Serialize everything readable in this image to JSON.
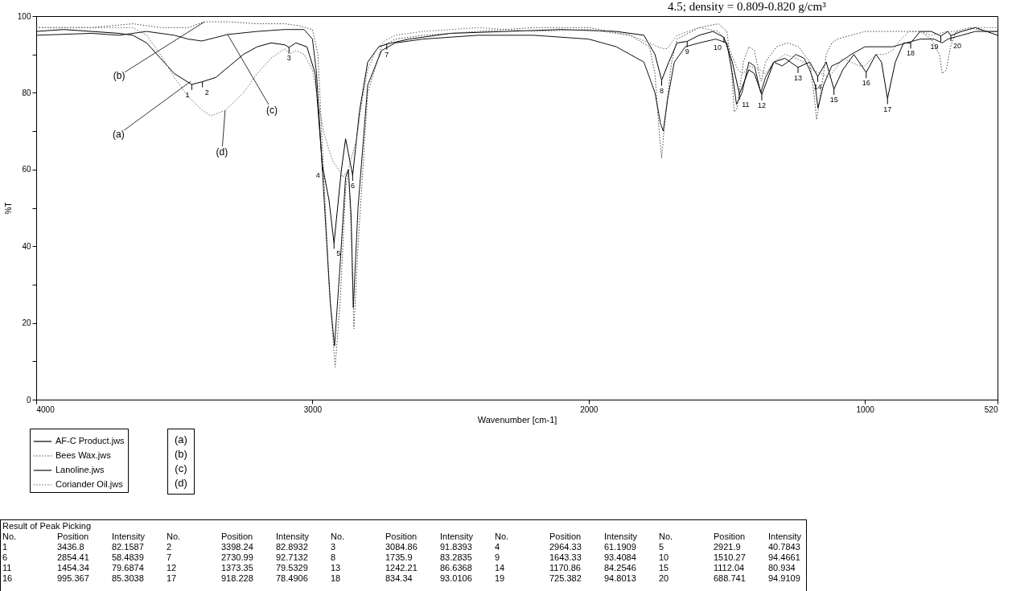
{
  "chart_data": [
    {
      "type": "line",
      "xlabel": "Wavenumber [cm-1]",
      "ylabel": "%T",
      "xlim": [
        4000,
        520
      ],
      "xticks": [
        4000,
        3000,
        2000,
        1000,
        520
      ],
      "ylim": [
        0,
        100
      ],
      "yticks": [
        0,
        {
          "value": 10,
          "label": null
        },
        20,
        {
          "value": 30,
          "label": null
        },
        40,
        {
          "value": 50,
          "label": null
        },
        60,
        {
          "value": 70,
          "label": null
        },
        80,
        {
          "value": 90,
          "label": null
        },
        100
      ],
      "grid": false,
      "legend": "bottom left",
      "series": [
        {
          "name": "AF-C Product.jws",
          "color": "#000000",
          "line_style": "solid",
          "x": [
            4000,
            3900,
            3800,
            3700,
            3650,
            3600,
            3550,
            3500,
            3436.8,
            3420,
            3398.24,
            3350,
            3300,
            3250,
            3200,
            3150,
            3100,
            3084.86,
            3060,
            3020,
            2990,
            2964.33,
            2940,
            2921.9,
            2895,
            2880,
            2854.41,
            2830,
            2800,
            2760,
            2730.99,
            2650,
            2500,
            2300,
            2100,
            1900,
            1800,
            1760,
            1735.9,
            1710,
            1680,
            1643.33,
            1600,
            1550,
            1510.27,
            1480,
            1454.34,
            1420,
            1400,
            1373.35,
            1330,
            1290,
            1242.21,
            1200,
            1170.86,
            1140,
            1112.04,
            1080,
            1040,
            995.367,
            960,
            940,
            918.228,
            890,
            860,
            834.34,
            800,
            760,
            725.382,
            700,
            688.741,
            650,
            600,
            560,
            520
          ],
          "values": [
            96,
            96.5,
            96,
            95.5,
            95,
            93,
            89,
            85,
            82.1587,
            82.5,
            82.8932,
            84,
            87,
            90,
            92,
            93,
            92.5,
            91.8393,
            93,
            92,
            85,
            61.1909,
            52,
            40.7843,
            60,
            68,
            58.4839,
            75,
            88,
            92,
            92.7132,
            94,
            95.5,
            96,
            96.5,
            96,
            95,
            90,
            83.2835,
            88,
            93,
            93.4084,
            95,
            96,
            94.4661,
            88,
            79.6874,
            86,
            85,
            79.5329,
            88,
            89,
            86.6368,
            88,
            84.2546,
            88,
            80.934,
            86,
            90,
            85.3038,
            90,
            88,
            78.4906,
            88,
            93,
            93.0106,
            96,
            96,
            94.8013,
            96,
            94.9109,
            96,
            97,
            96,
            95
          ]
        },
        {
          "name": "Bees Wax.jws",
          "color": "#444444",
          "line_style": "dotted",
          "x": [
            4000,
            3800,
            3650,
            3550,
            3450,
            3391,
            3300,
            3200,
            3100,
            3050,
            3000,
            2980,
            2960,
            2940,
            2918,
            2900,
            2880,
            2870,
            2860,
            2850,
            2835,
            2800,
            2750,
            2700,
            2600,
            2400,
            2200,
            2000,
            1850,
            1780,
            1760,
            1745,
            1736,
            1725,
            1700,
            1680,
            1600,
            1530,
            1500,
            1485,
            1473,
            1463,
            1440,
            1420,
            1400,
            1380,
            1375,
            1360,
            1320,
            1280,
            1240,
            1200,
            1185,
            1175,
            1160,
            1140,
            1120,
            1100,
            1050,
            1000,
            900,
            850,
            800,
            760,
            730,
            720,
            705,
            690,
            670,
            620,
            560,
            520
          ],
          "values": [
            97,
            97,
            98,
            97,
            97,
            98.5,
            98.5,
            98,
            98,
            97.5,
            96.5,
            90,
            60,
            30,
            8.5,
            25,
            55,
            60,
            45,
            18.5,
            40,
            80,
            92,
            94,
            95,
            96,
            97,
            97,
            95,
            92,
            85,
            70,
            63,
            72,
            88,
            94,
            97,
            98,
            96,
            88,
            75,
            76,
            88,
            92,
            91,
            84,
            83,
            88,
            92,
            93,
            92,
            88,
            80,
            73,
            80,
            90,
            93,
            94,
            95,
            96,
            96,
            96,
            96,
            94,
            90,
            85,
            86,
            92,
            96,
            97,
            96,
            96
          ]
        },
        {
          "name": "Lanoline.jws",
          "color": "#111111",
          "line_style": "solid",
          "x": [
            4000,
            3800,
            3700,
            3600,
            3500,
            3450,
            3400,
            3307,
            3200,
            3100,
            3030,
            3000,
            2985,
            2960,
            2935,
            2920,
            2900,
            2880,
            2870,
            2860,
            2852,
            2835,
            2800,
            2750,
            2700,
            2600,
            2400,
            2200,
            2000,
            1900,
            1800,
            1760,
            1740,
            1730,
            1715,
            1690,
            1650,
            1600,
            1540,
            1500,
            1480,
            1465,
            1445,
            1420,
            1400,
            1377,
            1360,
            1330,
            1300,
            1280,
            1250,
            1220,
            1200,
            1180,
            1170,
            1150,
            1120,
            1090,
            1050,
            1000,
            950,
            900,
            850,
            800,
            750,
            720,
            700,
            650,
            600,
            520
          ],
          "values": [
            95,
            95.5,
            95,
            96,
            95,
            94,
            93.5,
            95.2,
            96,
            96.5,
            96.5,
            94,
            85,
            55,
            25,
            14,
            35,
            58,
            60,
            48,
            24,
            50,
            82,
            91,
            93,
            94,
            95,
            95,
            94,
            92,
            88,
            80,
            72,
            70,
            78,
            88,
            92,
            93,
            94,
            93,
            85,
            77,
            80,
            88,
            87,
            80,
            84,
            88,
            87,
            88,
            90,
            89,
            86,
            82,
            76,
            82,
            87,
            88,
            90,
            92,
            92,
            92,
            93,
            94,
            94,
            93,
            94,
            95,
            96,
            96
          ]
        },
        {
          "name": "Coriander Oil.jws",
          "color": "#666666",
          "line_style": "dotted",
          "x": [
            4000,
            3800,
            3650,
            3600,
            3550,
            3500,
            3450,
            3400,
            3368,
            3316,
            3250,
            3200,
            3150,
            3100,
            3084,
            3060,
            3030,
            3000,
            2980,
            2960,
            2940,
            2925,
            2905,
            2890,
            2870,
            2855,
            2840,
            2820,
            2800,
            2770,
            2740,
            2700,
            2600,
            2400,
            2200,
            2000,
            1850,
            1780,
            1750,
            1730,
            1715,
            1700,
            1680,
            1600,
            1530,
            1500,
            1460,
            1440,
            1420,
            1380,
            1360,
            1330,
            1290,
            1250,
            1220,
            1190,
            1160,
            1130,
            1110,
            1080,
            1050,
            1020,
            1000,
            960,
            930,
            900,
            870,
            840,
            800,
            760,
            700,
            650,
            600,
            520
          ],
          "values": [
            97,
            97,
            97,
            95,
            90,
            84,
            79,
            75.5,
            74,
            75.4,
            80,
            85,
            89,
            91.5,
            90,
            91,
            90,
            86,
            78,
            70,
            65,
            62,
            60,
            58,
            60,
            64,
            68,
            78,
            86,
            91,
            93.5,
            95,
            96,
            97,
            96,
            96.5,
            95,
            93,
            92,
            91.5,
            91.5,
            93,
            95,
            97,
            96,
            93,
            86,
            85,
            87,
            86,
            85,
            88,
            90,
            89,
            88,
            86,
            85,
            84,
            86,
            89,
            88,
            87,
            87,
            90,
            90,
            91,
            94,
            96,
            96,
            95,
            96,
            96,
            97,
            97
          ]
        }
      ],
      "annotations": [
        "4.5; density = 0.809-0.820 g/cm³",
        {
          "text": "(a)",
          "x": 3440,
          "y": 83
        },
        {
          "text": "(b)",
          "x": 3391,
          "y": 98.5
        },
        {
          "text": "(c)",
          "x": 3307,
          "y": 95.2
        },
        {
          "text": "(d)",
          "x": 3316,
          "y": 75.4
        },
        {
          "text": "1",
          "x": 3436.8,
          "y": 82.2
        },
        {
          "text": "2",
          "x": 3398.2,
          "y": 82.9
        },
        {
          "text": "3",
          "x": 3084.9,
          "y": 91.8
        },
        {
          "text": "4",
          "x": 2964.3,
          "y": 61.2
        },
        {
          "text": "5",
          "x": 2921.9,
          "y": 40.8
        },
        {
          "text": "6",
          "x": 2854.4,
          "y": 58.5
        },
        {
          "text": "7",
          "x": 2731,
          "y": 92.7
        },
        {
          "text": "8",
          "x": 1735.9,
          "y": 83.3
        },
        {
          "text": "9",
          "x": 1643.3,
          "y": 93.4
        },
        {
          "text": "10",
          "x": 1510.3,
          "y": 94.5
        },
        {
          "text": "11",
          "x": 1454.3,
          "y": 79.7
        },
        {
          "text": "12",
          "x": 1373.4,
          "y": 79.5
        },
        {
          "text": "13",
          "x": 1242.2,
          "y": 86.6
        },
        {
          "text": "14",
          "x": 1170.9,
          "y": 84.3
        },
        {
          "text": "15",
          "x": 1112,
          "y": 80.9
        },
        {
          "text": "16",
          "x": 995.4,
          "y": 85.3
        },
        {
          "text": "17",
          "x": 918.2,
          "y": 78.5
        },
        {
          "text": "18",
          "x": 834.3,
          "y": 93
        },
        {
          "text": "19",
          "x": 725.4,
          "y": 94.8
        },
        {
          "text": "20",
          "x": 688.7,
          "y": 94.9
        }
      ]
    },
    {
      "type": "other",
      "title": "Result of Peak Picking",
      "annotations": [
        "No.\tPosition\tIntensity\tNo.\tPosition\tIntensity\tNo.\tPosition\tIntensity\tNo.\tPosition\tIntensity\tNo.\tPosition\tIntensity",
        "1\t3436.8\t82.1587\t2\t3398.24\t82.8932\t3\t3084.86\t91.8393\t4\t2964.33\t61.1909\t5\t2921.9\t40.7843",
        "6\t2854.41\t58.4839\t7\t2730.99\t92.7132\t8\t1735.9\t83.2835\t9\t1643.33\t93.4084\t10\t1510.27\t94.4661",
        "11\t1454.34\t79.6874\t12\t1373.35\t79.5329\t13\t1242.21\t86.6368\t14\t1170.86\t84.2546\t15\t1112.04\t80.934",
        "16\t995.367\t85.3038\t17\t918.228\t78.4906\t18\t834.34\t93.0106\t19\t725.382\t94.8013\t20\t688.741\t94.9109"
      ]
    }
  ]
}
